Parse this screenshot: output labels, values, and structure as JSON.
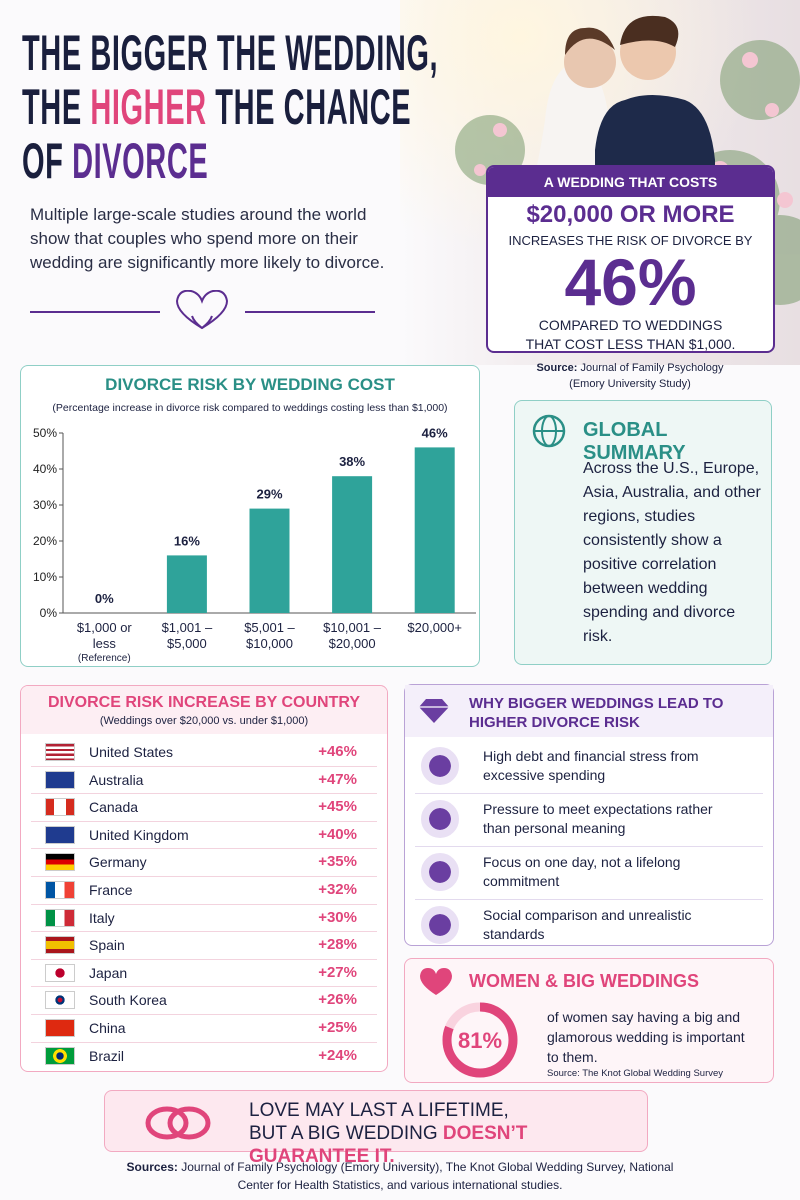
{
  "header": {
    "title_line1": "THE BIGGER THE WEDDING,",
    "title_line2": [
      "THE ",
      "HIGHER",
      " THE CHANCE"
    ],
    "title_line3": [
      "OF ",
      "DIVORCE"
    ],
    "intro": "Multiple large-scale studies around the world show that couples who spend more on their wedding are significantly more likely to divorce."
  },
  "highlight": {
    "heading": "A WEDDING THAT COSTS",
    "amount": "$20,000 OR MORE",
    "lead": "INCREASES THE RISK OF DIVORCE BY",
    "value": "46%",
    "tail": "COMPARED TO WEDDINGS THAT COST LESS THAN $1,000.",
    "source_label": "Source:",
    "source": "Journal of Family Psychology (Emory University Study)"
  },
  "chart_data": {
    "type": "bar",
    "title": "DIVORCE RISK BY WEDDING COST",
    "subtitle": "(Percentage increase in divorce risk compared to weddings costing less than $1,000)",
    "categories": [
      "$1,000 or less",
      "$1,001 – $5,000",
      "$5,001 – $10,000",
      "$10,001 – $20,000",
      "$20,000+"
    ],
    "category_note": "(Reference)",
    "values": [
      0,
      16,
      29,
      38,
      46
    ],
    "value_labels": [
      "0%",
      "16%",
      "29%",
      "38%",
      "46%"
    ],
    "color": "#2fa39a",
    "ylim": [
      0,
      50
    ],
    "yticks": [
      {
        "value": 0,
        "label": "0%"
      },
      {
        "value": 10,
        "label": "10%"
      },
      {
        "value": 20,
        "label": "20%"
      },
      {
        "value": 30,
        "label": "30%"
      },
      {
        "value": 40,
        "label": "40%"
      },
      {
        "value": 50,
        "label": "50%"
      }
    ],
    "grid": false
  },
  "global_summary": {
    "title": "GLOBAL SUMMARY",
    "text": "Across the U.S., Europe, Asia, Australia, and other regions, studies consistently show a positive correlation between wedding spending and divorce risk."
  },
  "countries": {
    "title": "DIVORCE RISK INCREASE BY COUNTRY",
    "subtitle": "(Weddings over $20,000 vs. under $1,000)",
    "rows": [
      [
        "United States",
        "+46%"
      ],
      [
        "Australia",
        "+47%"
      ],
      [
        "Canada",
        "+45%"
      ],
      [
        "United Kingdom",
        "+40%"
      ],
      [
        "Germany",
        "+35%"
      ],
      [
        "France",
        "+32%"
      ],
      [
        "Italy",
        "+30%"
      ],
      [
        "Spain",
        "+28%"
      ],
      [
        "Japan",
        "+27%"
      ],
      [
        "South Korea",
        "+26%"
      ],
      [
        "China",
        "+25%"
      ],
      [
        "Brazil",
        "+24%"
      ]
    ]
  },
  "reasons": {
    "title": "WHY BIGGER WEDDINGS LEAD TO HIGHER DIVORCE RISK",
    "items": [
      "High debt and financial stress from excessive spending",
      "Pressure to meet expectations rather than personal meaning",
      "Focus on one day, not a lifelong commitment",
      "Social comparison and unrealistic standards"
    ]
  },
  "women": {
    "title": "WOMEN & BIG WEDDINGS",
    "value": 81,
    "value_label": "81%",
    "text": "of women say having a big and glamorous wedding is important to them.",
    "source": "Source: The Knot Global Wedding Survey"
  },
  "footer": {
    "line1": "LOVE MAY LAST A LIFETIME,",
    "line2": [
      "BUT A BIG WEDDING ",
      "DOESN’T GUARANTEE IT."
    ],
    "sources_label": "Sources:",
    "sources": "Journal of Family Psychology (Emory University), The Knot Global Wedding Survey, National Center for Health Statistics, and various international studies."
  }
}
